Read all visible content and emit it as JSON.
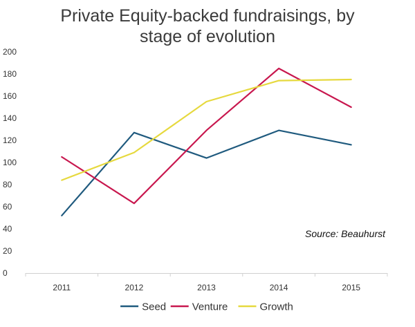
{
  "chart_data": {
    "type": "line",
    "title_lines": [
      "Private Equity-backed fundraisings, by",
      "stage of evolution"
    ],
    "categories": [
      "2011",
      "2012",
      "2013",
      "2014",
      "2015"
    ],
    "ylim": [
      0,
      200
    ],
    "y_ticks": [
      "0",
      "20",
      "40",
      "60",
      "80",
      "100",
      "120",
      "140",
      "160",
      "180",
      "200"
    ],
    "grid": false,
    "legend_position": "bottom",
    "annotation": "Source: Beauhurst",
    "series": [
      {
        "name": "Seed",
        "color": "#1f5a7e",
        "values": [
          52,
          127,
          104,
          129,
          116
        ]
      },
      {
        "name": "Venture",
        "color": "#c8174e",
        "values": [
          105,
          63,
          129,
          185,
          150
        ]
      },
      {
        "name": "Growth",
        "color": "#e6d93e",
        "values": [
          84,
          109,
          155,
          174,
          175
        ]
      }
    ]
  }
}
